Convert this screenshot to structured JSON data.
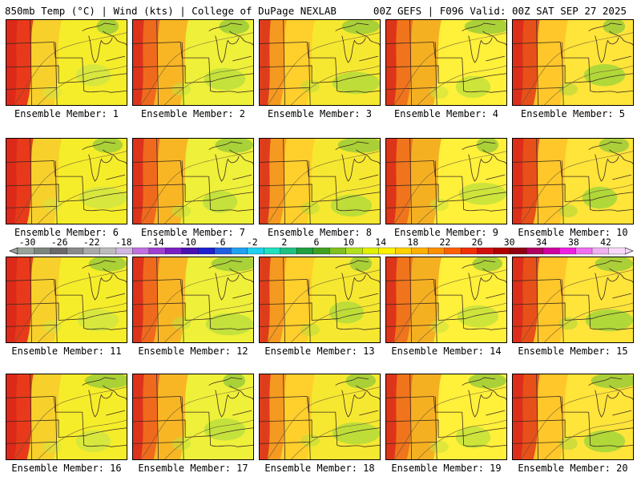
{
  "header": {
    "left": "850mb Temp (°C) | Wind (kts) | College of DuPage NEXLAB",
    "right": "00Z GEFS | F096 Valid: 00Z SAT SEP 27 2025"
  },
  "colorbar": {
    "ticks": [
      "-30",
      "-26",
      "-22",
      "-18",
      "-14",
      "-10",
      "-6",
      "-2",
      "2",
      "6",
      "10",
      "14",
      "18",
      "22",
      "26",
      "30",
      "34",
      "38",
      "42"
    ],
    "colors": [
      "#9aa39a",
      "#7c857c",
      "#6a6a6a",
      "#8a8a8a",
      "#a9a9a9",
      "#bcbcbc",
      "#d0b8e0",
      "#c070e0",
      "#a040d0",
      "#7a20c0",
      "#4a10b0",
      "#2020d0",
      "#2060e0",
      "#20a0f0",
      "#20d0f0",
      "#20e0c0",
      "#20c080",
      "#20a040",
      "#40a020",
      "#80c020",
      "#b0e020",
      "#e0f000",
      "#fff000",
      "#ffd000",
      "#ffb000",
      "#ff9000",
      "#ff6000",
      "#f03000",
      "#d01010",
      "#b00000",
      "#900010",
      "#b00060",
      "#d000a0",
      "#f020e0",
      "#f070f0",
      "#f0b0f0",
      "#f8d8f8"
    ]
  },
  "members": [
    {
      "label": "Ensemble Member: 1"
    },
    {
      "label": "Ensemble Member: 2"
    },
    {
      "label": "Ensemble Member: 3"
    },
    {
      "label": "Ensemble Member: 4"
    },
    {
      "label": "Ensemble Member: 5"
    },
    {
      "label": "Ensemble Member: 6"
    },
    {
      "label": "Ensemble Member: 7"
    },
    {
      "label": "Ensemble Member: 8"
    },
    {
      "label": "Ensemble Member: 9"
    },
    {
      "label": "Ensemble Member: 10"
    },
    {
      "label": "Ensemble Member: 11"
    },
    {
      "label": "Ensemble Member: 12"
    },
    {
      "label": "Ensemble Member: 13"
    },
    {
      "label": "Ensemble Member: 14"
    },
    {
      "label": "Ensemble Member: 15"
    },
    {
      "label": "Ensemble Member: 16"
    },
    {
      "label": "Ensemble Member: 17"
    },
    {
      "label": "Ensemble Member: 18"
    },
    {
      "label": "Ensemble Member: 19"
    },
    {
      "label": "Ensemble Member: 20"
    }
  ]
}
